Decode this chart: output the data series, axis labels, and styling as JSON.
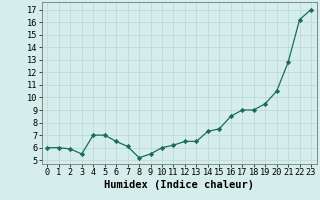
{
  "x": [
    0,
    1,
    2,
    3,
    4,
    5,
    6,
    7,
    8,
    9,
    10,
    11,
    12,
    13,
    14,
    15,
    16,
    17,
    18,
    19,
    20,
    21,
    22,
    23
  ],
  "y": [
    6.0,
    6.0,
    5.9,
    5.5,
    7.0,
    7.0,
    6.5,
    6.1,
    5.2,
    5.5,
    6.0,
    6.2,
    6.5,
    6.5,
    7.3,
    7.5,
    8.5,
    9.0,
    9.0,
    9.5,
    10.5,
    12.8,
    16.2,
    17.0
  ],
  "line_color": "#1a6b5e",
  "marker": "D",
  "marker_size": 2.2,
  "bg_color": "#d6eeeb",
  "grid_color": "#b8d8d4",
  "xlabel": "Humidex (Indice chaleur)",
  "xlabel_fontsize": 7.5,
  "ytick_values": [
    5,
    6,
    7,
    8,
    9,
    10,
    11,
    12,
    13,
    14,
    15,
    16,
    17
  ],
  "xlim": [
    -0.5,
    23.5
  ],
  "ylim": [
    4.7,
    17.6
  ],
  "tick_fontsize": 6.2,
  "linewidth": 0.9
}
